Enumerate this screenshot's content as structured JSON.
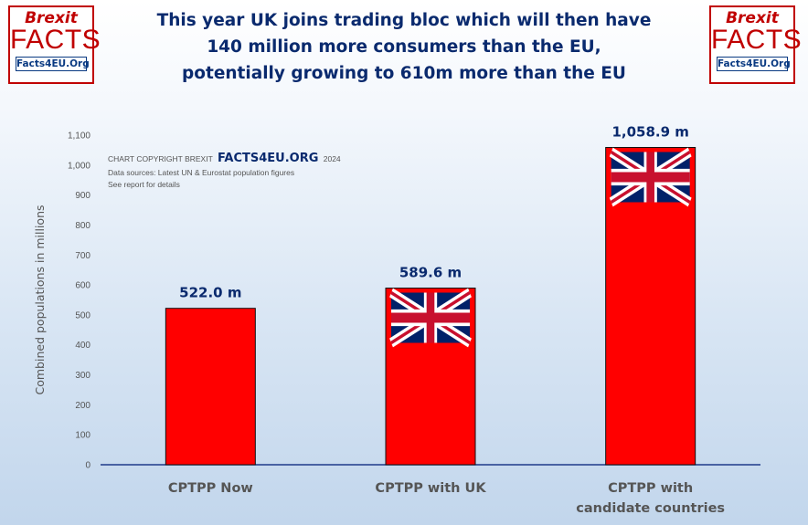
{
  "logo": {
    "line1": "Brexit",
    "line2": "FACTS",
    "line3": "Facts4EU.Org"
  },
  "title_lines": [
    "This year UK joins trading bloc which will then have",
    "140 million more consumers than the EU,",
    "potentially growing to 610m more than the EU"
  ],
  "copyright": {
    "prefix": "CHART COPYRIGHT BREXIT",
    "brand": "FACTS4EU.ORG",
    "year": "2024",
    "line2": "Data sources: Latest UN & Eurostat population figures",
    "line3": "See report for details"
  },
  "colors": {
    "bar": "#ff0000",
    "title": "#0a2a6e",
    "logo_red": "#c00000",
    "logo_blue": "#0a3a82",
    "axis": "#1f3a8a"
  },
  "chart_data": {
    "type": "bar",
    "categories": [
      [
        "CPTPP Now"
      ],
      [
        "CPTPP with UK"
      ],
      [
        "CPTPP with",
        "candidate countries"
      ]
    ],
    "values": [
      522.0,
      589.6,
      1058.9
    ],
    "data_labels": [
      "522.0 m",
      "589.6 m",
      "1,058.9 m"
    ],
    "flags": [
      false,
      true,
      true
    ],
    "ylabel": "Combined populations in millions",
    "ylim": [
      0,
      1100
    ],
    "yticks": [
      0,
      100,
      200,
      300,
      400,
      500,
      600,
      700,
      800,
      900,
      1000,
      1100
    ],
    "ytick_labels": [
      "0",
      "100",
      "200",
      "300",
      "400",
      "500",
      "600",
      "700",
      "800",
      "900",
      "1,000",
      "1,100"
    ],
    "grid": false
  }
}
